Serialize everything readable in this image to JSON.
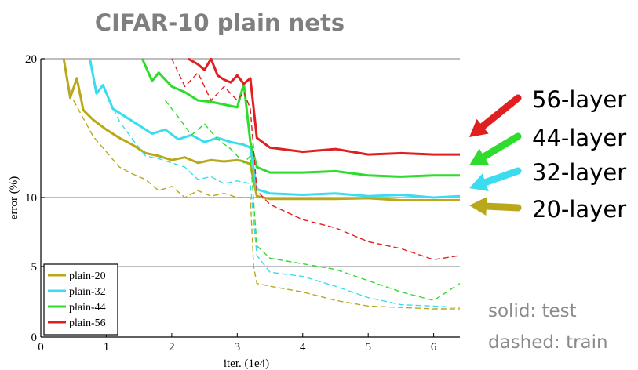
{
  "title": "CIFAR-10 plain nets",
  "notes": {
    "solid": "solid: test",
    "dashed": "dashed: train"
  },
  "chart_data": {
    "type": "line",
    "title": "CIFAR-10 plain nets",
    "xlabel": "iter. (1e4)",
    "ylabel": "error (%)",
    "xlim": [
      0,
      6.4
    ],
    "ylim": [
      0,
      20
    ],
    "xticks": [
      0,
      1,
      2,
      3,
      4,
      5,
      6
    ],
    "yticks": [
      0,
      5,
      10,
      20
    ],
    "grid_lines_y": [
      5,
      10,
      20
    ],
    "legend_position": "bottom-left",
    "series": [
      {
        "name": "plain-20",
        "color": "#b9a81a",
        "test": {
          "x": [
            0.35,
            0.45,
            0.55,
            0.65,
            0.8,
            1.0,
            1.2,
            1.4,
            1.6,
            1.8,
            2.0,
            2.2,
            2.4,
            2.6,
            2.8,
            3.0,
            3.1,
            3.2,
            3.3,
            3.5,
            4.0,
            4.5,
            5.0,
            5.5,
            6.0,
            6.4
          ],
          "y": [
            20,
            17.2,
            18.6,
            16.3,
            15.6,
            14.9,
            14.3,
            13.8,
            13.2,
            13.0,
            12.7,
            12.9,
            12.5,
            12.7,
            12.6,
            12.7,
            12.6,
            12.4,
            10.1,
            9.9,
            9.9,
            9.9,
            9.95,
            9.8,
            9.8,
            9.8
          ]
        },
        "train": {
          "x": [
            0.5,
            0.8,
            1.0,
            1.2,
            1.4,
            1.6,
            1.8,
            2.0,
            2.2,
            2.4,
            2.6,
            2.8,
            3.0,
            3.2,
            3.25,
            3.3,
            3.5,
            4.0,
            4.5,
            5.0,
            5.5,
            6.0,
            6.4
          ],
          "y": [
            17.0,
            14.4,
            13.3,
            12.2,
            11.7,
            11.3,
            10.5,
            10.8,
            10.0,
            10.5,
            10.1,
            10.3,
            10.0,
            10.0,
            5.0,
            3.8,
            3.6,
            3.2,
            2.6,
            2.2,
            2.1,
            2.0,
            2.0
          ]
        }
      },
      {
        "name": "plain-32",
        "color": "#3cdcf0",
        "test": {
          "x": [
            0.75,
            0.85,
            0.95,
            1.1,
            1.3,
            1.5,
            1.7,
            1.9,
            2.1,
            2.3,
            2.5,
            2.7,
            2.9,
            3.1,
            3.2,
            3.3,
            3.5,
            4.0,
            4.5,
            5.0,
            5.5,
            6.0,
            6.4
          ],
          "y": [
            20,
            17.5,
            18.1,
            16.4,
            15.8,
            15.2,
            14.6,
            14.9,
            14.2,
            14.5,
            14.0,
            14.3,
            14.0,
            13.8,
            13.6,
            10.6,
            10.3,
            10.2,
            10.3,
            10.1,
            10.2,
            10.0,
            10.1
          ]
        },
        "train": {
          "x": [
            1.0,
            1.2,
            1.4,
            1.6,
            1.8,
            2.0,
            2.2,
            2.4,
            2.6,
            2.8,
            3.0,
            3.2,
            3.3,
            3.5,
            4.0,
            4.5,
            5.0,
            5.5,
            6.0,
            6.4
          ],
          "y": [
            17.5,
            15.5,
            14.2,
            13.0,
            12.8,
            12.5,
            12.2,
            11.3,
            11.5,
            11.0,
            11.2,
            11.0,
            5.8,
            4.6,
            4.3,
            3.6,
            2.8,
            2.3,
            2.2,
            2.1
          ]
        }
      },
      {
        "name": "plain-44",
        "color": "#2ddc2d",
        "test": {
          "x": [
            1.55,
            1.7,
            1.8,
            2.0,
            2.2,
            2.4,
            2.6,
            2.8,
            3.0,
            3.1,
            3.2,
            3.3,
            3.5,
            4.0,
            4.5,
            5.0,
            5.5,
            6.0,
            6.4
          ],
          "y": [
            20,
            18.4,
            19.0,
            18.0,
            17.6,
            17.0,
            16.9,
            16.7,
            16.5,
            18.2,
            14.0,
            12.2,
            11.8,
            11.8,
            11.9,
            11.6,
            11.5,
            11.6,
            11.6
          ]
        },
        "train": {
          "x": [
            1.9,
            2.1,
            2.3,
            2.5,
            2.7,
            2.9,
            3.0,
            3.1,
            3.2,
            3.3,
            3.5,
            4.0,
            4.5,
            5.0,
            5.5,
            6.0,
            6.4
          ],
          "y": [
            17.0,
            15.8,
            14.5,
            15.3,
            14.2,
            13.5,
            13.0,
            12.5,
            13.0,
            6.5,
            5.6,
            5.2,
            4.8,
            4.0,
            3.2,
            2.6,
            3.8
          ]
        }
      },
      {
        "name": "plain-56",
        "color": "#e02020",
        "test": {
          "x": [
            2.25,
            2.4,
            2.5,
            2.6,
            2.7,
            2.8,
            2.9,
            3.0,
            3.1,
            3.2,
            3.3,
            3.5,
            4.0,
            4.5,
            5.0,
            5.5,
            6.0,
            6.4
          ],
          "y": [
            20,
            19.6,
            19.2,
            20,
            18.8,
            18.5,
            18.3,
            18.8,
            18.2,
            18.6,
            14.3,
            13.6,
            13.3,
            13.5,
            13.1,
            13.2,
            13.1,
            13.1
          ]
        },
        "train": {
          "x": [
            2.0,
            2.2,
            2.4,
            2.6,
            2.8,
            3.0,
            3.1,
            3.2,
            3.3,
            3.5,
            4.0,
            4.5,
            5.0,
            5.5,
            6.0,
            6.4
          ],
          "y": [
            20,
            18.0,
            19.0,
            17.0,
            18.0,
            17.0,
            17.6,
            16.4,
            10.5,
            9.5,
            8.4,
            7.8,
            6.8,
            6.3,
            5.5,
            5.8
          ]
        }
      }
    ],
    "annotations": [
      "56-layer",
      "44-layer",
      "32-layer",
      "20-layer"
    ]
  }
}
